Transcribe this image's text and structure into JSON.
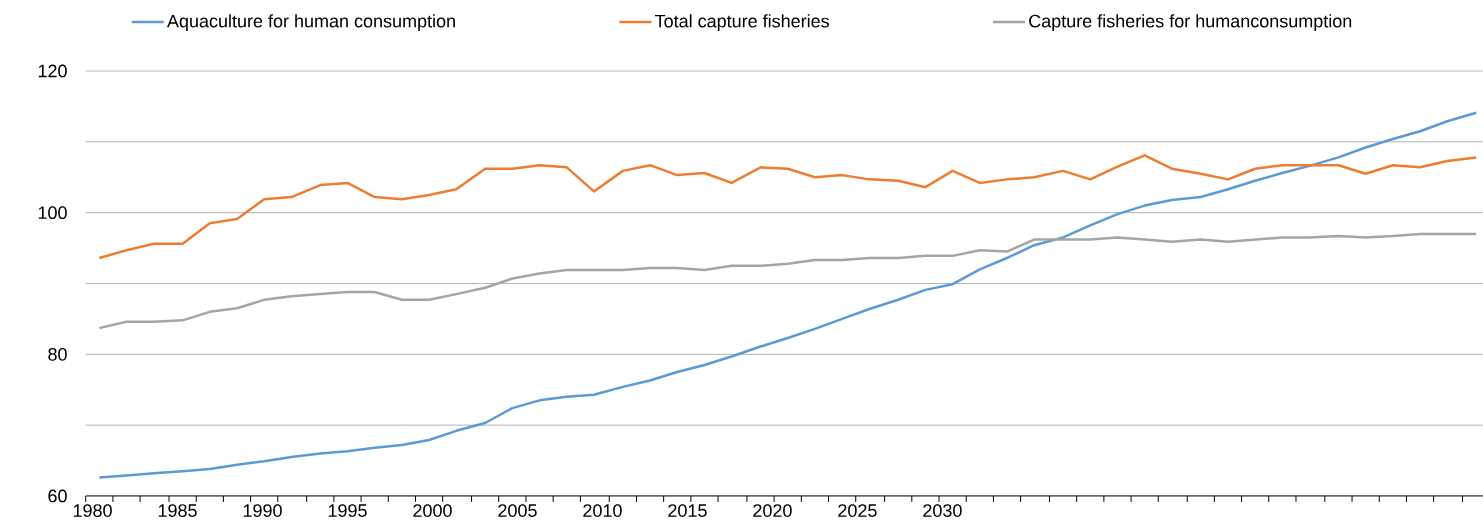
{
  "chart_data": {
    "type": "line",
    "x": [
      1980.4,
      1982.0,
      1983.6,
      1985.3,
      1986.9,
      1988.5,
      1990.1,
      1991.7,
      1993.4,
      1995.0,
      1996.6,
      1998.2,
      1999.8,
      2001.4,
      2003.1,
      2004.7,
      2006.3,
      2007.9,
      2009.5,
      2011.2,
      2012.8,
      2014.4,
      2016.0,
      2017.6,
      2019.3,
      2020.9,
      2022.5,
      2024.1,
      2025.7,
      2027.4,
      2029.0,
      2030.6,
      2032.2,
      2033.8,
      2035.4,
      2037.1,
      2038.7,
      2040.3,
      2041.9,
      2043.5,
      2045.2,
      2046.8,
      2048.4,
      2050.0,
      2051.6,
      2053.3,
      2054.9,
      2056.5,
      2058.1,
      2059.7,
      2061.4
    ],
    "series": [
      {
        "name": "Aquaculture for human consumption",
        "color": "#5b9bd5",
        "values": [
          62.6,
          62.9,
          63.2,
          63.5,
          63.8,
          64.4,
          64.9,
          65.5,
          66.0,
          66.3,
          66.8,
          67.2,
          67.9,
          69.2,
          70.3,
          72.4,
          73.5,
          74.0,
          74.3,
          75.4,
          76.3,
          77.5,
          78.5,
          79.7,
          81.1,
          82.3,
          83.6,
          85.0,
          86.4,
          87.7,
          89.1,
          89.9,
          92.0,
          93.6,
          95.4,
          96.5,
          98.2,
          99.8,
          101.0,
          101.8,
          102.2,
          103.3,
          104.5,
          105.6,
          106.6,
          107.8,
          109.2,
          110.4,
          111.5,
          112.9,
          114.1
        ]
      },
      {
        "name": "Total capture fisheries",
        "color": "#ed7d31",
        "values": [
          93.6,
          94.7,
          95.6,
          95.6,
          98.5,
          99.1,
          101.9,
          102.2,
          103.9,
          104.2,
          102.2,
          101.9,
          102.5,
          103.3,
          106.2,
          106.2,
          106.7,
          106.4,
          103.0,
          105.9,
          106.7,
          105.3,
          105.6,
          104.2,
          106.4,
          106.2,
          105.0,
          105.3,
          104.7,
          104.5,
          103.6,
          105.9,
          104.2,
          104.7,
          105.0,
          105.9,
          104.7,
          106.5,
          108.1,
          106.2,
          105.5,
          104.7,
          106.2,
          106.7,
          106.7,
          106.7,
          105.5,
          106.7,
          106.4,
          107.3,
          107.8
        ]
      },
      {
        "name": "Capture fisheries for humanconsumption",
        "color": "#a5a5a5",
        "values": [
          83.7,
          84.6,
          84.6,
          84.8,
          86.0,
          86.5,
          87.7,
          88.2,
          88.5,
          88.8,
          88.8,
          87.7,
          87.7,
          88.5,
          89.4,
          90.7,
          91.4,
          91.9,
          91.9,
          91.9,
          92.2,
          92.2,
          91.9,
          92.5,
          92.5,
          92.8,
          93.3,
          93.3,
          93.6,
          93.6,
          93.9,
          93.9,
          94.7,
          94.5,
          96.2,
          96.2,
          96.2,
          96.5,
          96.2,
          95.9,
          96.2,
          95.9,
          96.2,
          96.5,
          96.5,
          96.7,
          96.5,
          96.7,
          97.0,
          97.0,
          97.0
        ]
      }
    ],
    "xlim": [
      1979.6,
      2061.8
    ],
    "xticks": [
      1980,
      1985,
      1990,
      1995,
      2000,
      2005,
      2010,
      2015,
      2020,
      2025,
      2030,
      {
        "value": 1979.6,
        "label": null
      },
      {
        "value": 1981.2,
        "label": null
      },
      {
        "value": 1982.8,
        "label": null
      },
      {
        "value": 1984.5,
        "label": null
      },
      {
        "value": 1986.1,
        "label": null
      },
      {
        "value": 1987.7,
        "label": null
      },
      {
        "value": 1989.3,
        "label": null
      },
      {
        "value": 1990.9,
        "label": null
      },
      {
        "value": 1992.6,
        "label": null
      },
      {
        "value": 1994.2,
        "label": null
      },
      {
        "value": 1995.8,
        "label": null
      },
      {
        "value": 1997.4,
        "label": null
      },
      {
        "value": 1999.0,
        "label": null
      },
      {
        "value": 2000.6,
        "label": null
      },
      {
        "value": 2002.3,
        "label": null
      },
      {
        "value": 2003.9,
        "label": null
      },
      {
        "value": 2005.5,
        "label": null
      },
      {
        "value": 2007.1,
        "label": null
      },
      {
        "value": 2008.7,
        "label": null
      },
      {
        "value": 2010.4,
        "label": null
      },
      {
        "value": 2012.0,
        "label": null
      },
      {
        "value": 2013.6,
        "label": null
      },
      {
        "value": 2015.2,
        "label": null
      },
      {
        "value": 2016.8,
        "label": null
      },
      {
        "value": 2018.5,
        "label": null
      },
      {
        "value": 2020.1,
        "label": null
      },
      {
        "value": 2021.7,
        "label": null
      },
      {
        "value": 2023.3,
        "label": null
      },
      {
        "value": 2024.9,
        "label": null
      },
      {
        "value": 2026.6,
        "label": null
      },
      {
        "value": 2028.2,
        "label": null
      },
      {
        "value": 2029.8,
        "label": null
      },
      {
        "value": 2031.4,
        "label": null
      },
      {
        "value": 2033.0,
        "label": null
      },
      {
        "value": 2034.6,
        "label": null
      },
      {
        "value": 2036.3,
        "label": null
      },
      {
        "value": 2037.9,
        "label": null
      },
      {
        "value": 2039.5,
        "label": null
      },
      {
        "value": 2041.1,
        "label": null
      },
      {
        "value": 2042.7,
        "label": null
      },
      {
        "value": 2044.4,
        "label": null
      },
      {
        "value": 2046.0,
        "label": null
      },
      {
        "value": 2047.6,
        "label": null
      },
      {
        "value": 2049.2,
        "label": null
      },
      {
        "value": 2050.8,
        "label": null
      },
      {
        "value": 2052.5,
        "label": null
      },
      {
        "value": 2054.1,
        "label": null
      },
      {
        "value": 2055.7,
        "label": null
      },
      {
        "value": 2057.3,
        "label": null
      },
      {
        "value": 2058.9,
        "label": null
      },
      {
        "value": 2060.6,
        "label": null
      }
    ],
    "ylim": [
      60,
      120
    ],
    "yticks": [
      60,
      {
        "value": 70,
        "label": null
      },
      80,
      {
        "value": 90,
        "label": null
      },
      100,
      {
        "value": 110,
        "label": null
      },
      120
    ],
    "grid": "y",
    "legend": "top"
  }
}
